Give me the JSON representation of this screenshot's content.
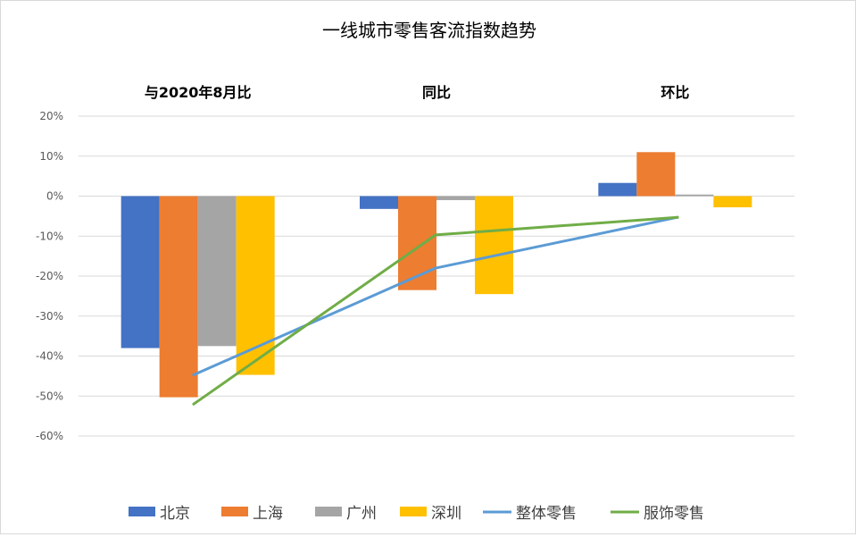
{
  "chart_data": {
    "type": "bar",
    "title": "一线城市零售客流指数趋势",
    "categories": [
      "与2020年8月比",
      "同比",
      "环比"
    ],
    "y_unit": "%",
    "ylim": [
      -60,
      20
    ],
    "yticks": [
      20,
      10,
      0,
      -10,
      -20,
      -30,
      -40,
      -50,
      -60
    ],
    "ytick_labels": [
      "20%",
      "10%",
      "0%",
      "-10%",
      "-20%",
      "-30%",
      "-40%",
      "-50%",
      "-60%"
    ],
    "grid": true,
    "legend_position": "bottom",
    "series": [
      {
        "name": "北京",
        "kind": "bar",
        "color": "#4472C4",
        "values": [
          -38,
          -3.2,
          3.3
        ]
      },
      {
        "name": "上海",
        "kind": "bar",
        "color": "#ED7D31",
        "values": [
          -50.3,
          -23.5,
          11
        ]
      },
      {
        "name": "广州",
        "kind": "bar",
        "color": "#A5A5A5",
        "values": [
          -37.5,
          -1,
          0.4
        ]
      },
      {
        "name": "深圳",
        "kind": "bar",
        "color": "#FFC000",
        "values": [
          -44.7,
          -24.5,
          -2.8
        ]
      },
      {
        "name": "整体零售",
        "kind": "line",
        "color": "#5B9BD5",
        "values": [
          -44.7,
          -18,
          -5.3
        ]
      },
      {
        "name": "服饰零售",
        "kind": "line",
        "color": "#70AD47",
        "values": [
          -52,
          -9.7,
          -5.3
        ]
      }
    ]
  }
}
